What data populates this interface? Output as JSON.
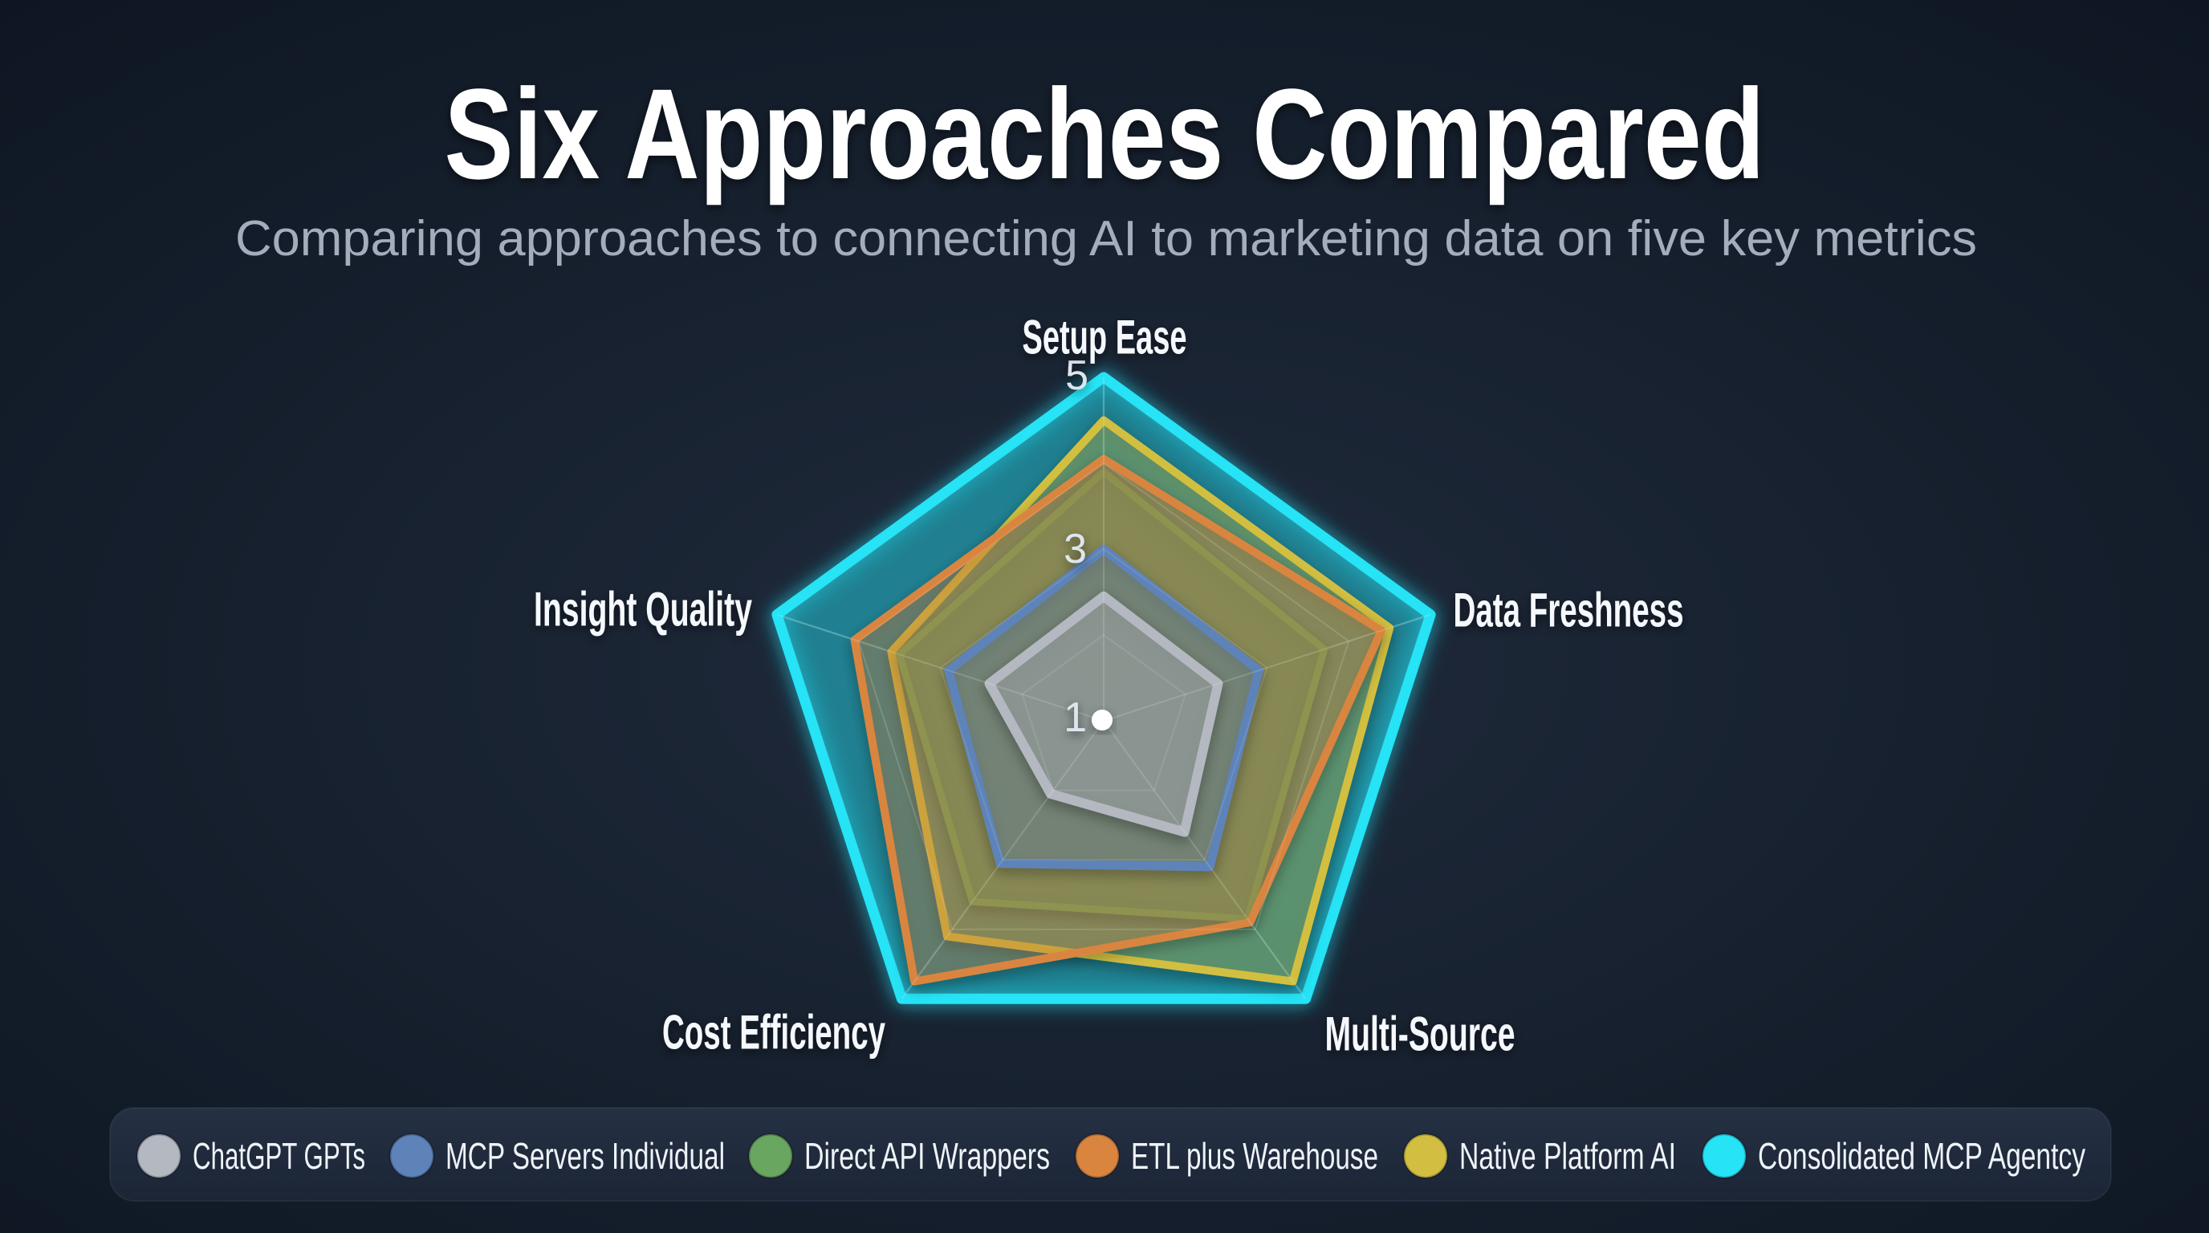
{
  "page": {
    "title": "Six Approaches Compared",
    "subtitle": "Comparing approaches to connecting AI to marketing data on five key metrics"
  },
  "chart_data": {
    "type": "radar",
    "title": "Six Approaches Compared",
    "subtitle": "Comparing approaches to connecting AI to marketing data on five key metrics",
    "axes": [
      "Setup Ease",
      "Data Freshness",
      "Multi-Source",
      "Cost Efficiency",
      "Insight Quality"
    ],
    "scale": {
      "min": 1,
      "max": 5,
      "tick_labels": [
        "5",
        "3",
        "1"
      ],
      "center_label": "1"
    },
    "series": [
      {
        "name": "ChatGPT GPTs",
        "color": "#b4b8c1",
        "values": [
          2.45,
          2.4,
          2.6,
          2.05,
          2.4
        ]
      },
      {
        "name": "MCP Servers Individual",
        "color": "#5d83b9",
        "values": [
          3.0,
          2.9,
          3.1,
          3.05,
          2.9
        ]
      },
      {
        "name": "Direct API Wrappers",
        "color": "#69a660",
        "values": [
          3.9,
          3.7,
          3.85,
          3.6,
          3.5
        ]
      },
      {
        "name": "ETL plus Warehouse",
        "color": "#d9853f",
        "values": [
          4.05,
          4.4,
          3.9,
          4.75,
          4.05
        ]
      },
      {
        "name": "Native Platform AI",
        "color": "#d2bf41",
        "values": [
          4.5,
          4.5,
          4.75,
          4.1,
          3.6
        ]
      },
      {
        "name": "Consolidated MCP Agentcy",
        "color": "#27e3f6",
        "values": [
          5.0,
          5.0,
          5.0,
          5.0,
          5.0
        ]
      }
    ],
    "legend_position": "bottom",
    "grid": true,
    "colors": {
      "background_center": "#1f2a3b",
      "background_edge": "#0e1624",
      "legend_bar": "#212d3f",
      "grid_line": "#ffffff",
      "accent": "#27e3f6"
    }
  }
}
